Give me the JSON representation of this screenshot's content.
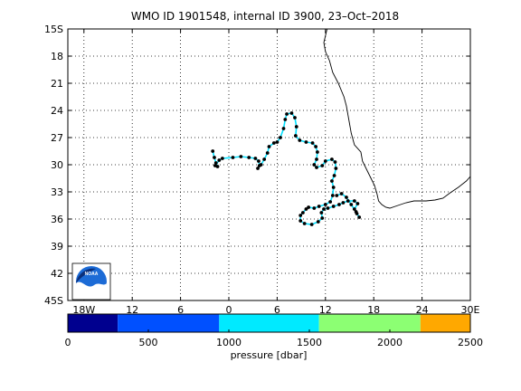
{
  "chart_data": {
    "type": "scatter",
    "title": "WMO ID 1901548, internal ID 3900, 23–Oct–2018",
    "x_axis": {
      "range": [
        -20,
        30
      ],
      "ticks": [
        -18,
        -12,
        -6,
        0,
        6,
        12,
        18,
        24,
        30
      ],
      "tick_labels": [
        "18W",
        "12",
        "6",
        "0",
        "6",
        "12",
        "18",
        "24",
        "30E"
      ]
    },
    "y_axis": {
      "range": [
        -45,
        -15
      ],
      "ticks": [
        -15,
        -18,
        -21,
        -24,
        -27,
        -30,
        -33,
        -36,
        -39,
        -42,
        -45
      ],
      "tick_labels": [
        "15S",
        "18",
        "21",
        "24",
        "27",
        "30",
        "33",
        "36",
        "39",
        "42",
        "45S"
      ]
    },
    "grid": true,
    "colorbar": {
      "label": "pressure [dbar]",
      "ticks": [
        0,
        500,
        1000,
        1500,
        2000,
        2500
      ],
      "range": [
        0,
        2500
      ],
      "bins": [
        {
          "from": 0,
          "to": 310,
          "color": "#00008f"
        },
        {
          "from": 310,
          "to": 940,
          "color": "#0050ff"
        },
        {
          "from": 940,
          "to": 1560,
          "color": "#00eaff"
        },
        {
          "from": 1560,
          "to": 2190,
          "color": "#8cff73"
        },
        {
          "from": 2190,
          "to": 2500,
          "color": "#ffa800"
        }
      ]
    },
    "track": {
      "line_color": "#00e0ff",
      "marker_color": "#000000",
      "points": [
        [
          -2.0,
          -28.5
        ],
        [
          -1.8,
          -29.2
        ],
        [
          -1.6,
          -29.8
        ],
        [
          -1.4,
          -30.2
        ],
        [
          -1.7,
          -30.1
        ],
        [
          -1.2,
          -29.5
        ],
        [
          -0.8,
          -29.3
        ],
        [
          0.5,
          -29.2
        ],
        [
          1.5,
          -29.1
        ],
        [
          2.5,
          -29.2
        ],
        [
          3.3,
          -29.3
        ],
        [
          3.7,
          -29.6
        ],
        [
          3.8,
          -30.1
        ],
        [
          3.6,
          -30.4
        ],
        [
          4.0,
          -30.0
        ],
        [
          4.4,
          -29.4
        ],
        [
          4.8,
          -28.7
        ],
        [
          5.0,
          -28.0
        ],
        [
          5.6,
          -27.6
        ],
        [
          6.0,
          -27.5
        ],
        [
          6.4,
          -27.0
        ],
        [
          6.8,
          -26.0
        ],
        [
          7.0,
          -25.0
        ],
        [
          7.2,
          -24.4
        ],
        [
          7.8,
          -24.3
        ],
        [
          8.2,
          -24.8
        ],
        [
          8.4,
          -25.8
        ],
        [
          8.3,
          -26.8
        ],
        [
          8.8,
          -27.3
        ],
        [
          9.6,
          -27.5
        ],
        [
          10.4,
          -27.6
        ],
        [
          10.8,
          -28.0
        ],
        [
          11.0,
          -28.6
        ],
        [
          10.9,
          -29.4
        ],
        [
          10.6,
          -30.0
        ],
        [
          10.9,
          -30.3
        ],
        [
          11.6,
          -30.1
        ],
        [
          12.0,
          -29.6
        ],
        [
          12.8,
          -29.4
        ],
        [
          13.2,
          -29.7
        ],
        [
          13.3,
          -30.4
        ],
        [
          13.1,
          -31.2
        ],
        [
          12.8,
          -31.8
        ],
        [
          13.0,
          -32.5
        ],
        [
          12.9,
          -33.4
        ],
        [
          12.6,
          -34.1
        ],
        [
          12.0,
          -34.4
        ],
        [
          11.2,
          -34.6
        ],
        [
          10.6,
          -34.8
        ],
        [
          9.9,
          -34.7
        ],
        [
          9.6,
          -34.9
        ],
        [
          9.2,
          -35.3
        ],
        [
          8.9,
          -35.6
        ],
        [
          8.9,
          -36.2
        ],
        [
          9.4,
          -36.5
        ],
        [
          10.3,
          -36.6
        ],
        [
          11.1,
          -36.3
        ],
        [
          11.6,
          -35.9
        ],
        [
          11.5,
          -35.3
        ],
        [
          11.8,
          -34.9
        ],
        [
          12.3,
          -34.8
        ],
        [
          13.0,
          -34.6
        ],
        [
          13.7,
          -34.4
        ],
        [
          14.2,
          -34.2
        ],
        [
          14.8,
          -34.0
        ],
        [
          15.6,
          -34.0
        ],
        [
          16.0,
          -34.3
        ],
        [
          15.6,
          -34.9
        ],
        [
          15.9,
          -35.4
        ],
        [
          16.2,
          -35.8
        ],
        [
          15.8,
          -35.2
        ],
        [
          15.2,
          -34.4
        ],
        [
          14.6,
          -33.6
        ],
        [
          14.0,
          -33.2
        ],
        [
          13.4,
          -33.4
        ]
      ]
    },
    "coastline": [
      [
        12.2,
        -15.0
      ],
      [
        11.8,
        -16.5
      ],
      [
        12.0,
        -17.5
      ],
      [
        12.5,
        -18.5
      ],
      [
        12.9,
        -19.8
      ],
      [
        13.6,
        -21.0
      ],
      [
        14.3,
        -22.5
      ],
      [
        14.6,
        -23.5
      ],
      [
        14.9,
        -25.0
      ],
      [
        15.2,
        -26.5
      ],
      [
        15.6,
        -27.8
      ],
      [
        16.4,
        -28.6
      ],
      [
        16.6,
        -29.6
      ],
      [
        17.1,
        -30.5
      ],
      [
        17.6,
        -31.4
      ],
      [
        18.1,
        -32.3
      ],
      [
        18.4,
        -33.2
      ],
      [
        18.6,
        -34.0
      ],
      [
        19.0,
        -34.4
      ],
      [
        19.5,
        -34.7
      ],
      [
        20.0,
        -34.8
      ],
      [
        21.0,
        -34.5
      ],
      [
        22.0,
        -34.2
      ],
      [
        23.0,
        -34.0
      ],
      [
        24.5,
        -34.0
      ],
      [
        25.6,
        -33.9
      ],
      [
        26.6,
        -33.7
      ],
      [
        27.5,
        -33.1
      ],
      [
        28.5,
        -32.5
      ],
      [
        29.5,
        -31.8
      ],
      [
        30.0,
        -31.3
      ]
    ]
  },
  "logo": {
    "text": "NOAA"
  }
}
